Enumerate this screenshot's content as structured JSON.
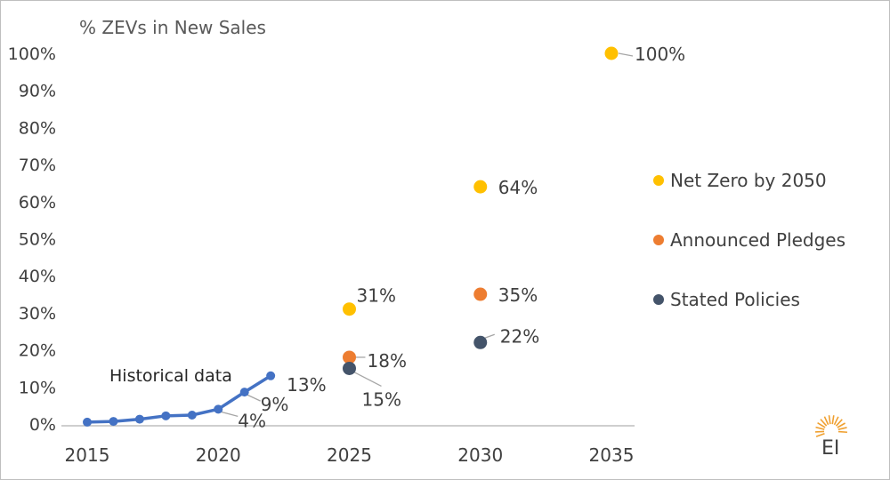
{
  "chart_data": {
    "type": "scatter",
    "title": "% ZEVs in New Sales",
    "xlabel": "",
    "ylabel": "",
    "xlim": [
      2015,
      2035
    ],
    "ylim": [
      0,
      100
    ],
    "x_ticks": [
      "2015",
      "2020",
      "2025",
      "2030",
      "2035"
    ],
    "y_ticks": [
      "0%",
      "10%",
      "20%",
      "30%",
      "40%",
      "50%",
      "60%",
      "70%",
      "80%",
      "90%",
      "100%"
    ],
    "grid": false,
    "legend_position": "right",
    "annotation": "Historical data",
    "historical": {
      "color": "#4472C4",
      "x": [
        2015,
        2016,
        2017,
        2018,
        2019,
        2020,
        2021,
        2022
      ],
      "y": [
        0.5,
        0.7,
        1.3,
        2.2,
        2.4,
        4.0,
        8.6,
        13.0
      ],
      "labels": [
        {
          "x": 2020,
          "y": 4.0,
          "text": "4%"
        },
        {
          "x": 2021,
          "y": 8.6,
          "text": "9%"
        },
        {
          "x": 2022,
          "y": 13.0,
          "text": "13%"
        }
      ]
    },
    "series": [
      {
        "name": "Net Zero by 2050",
        "color": "#FFC000",
        "points": [
          {
            "x": 2025,
            "y": 31,
            "label": "31%"
          },
          {
            "x": 2030,
            "y": 64,
            "label": "64%"
          },
          {
            "x": 2035,
            "y": 100,
            "label": "100%"
          }
        ]
      },
      {
        "name": "Announced Pledges",
        "color": "#ED7D31",
        "points": [
          {
            "x": 2025,
            "y": 18,
            "label": "18%"
          },
          {
            "x": 2030,
            "y": 35,
            "label": "35%"
          }
        ]
      },
      {
        "name": "Stated Policies",
        "color": "#44546A",
        "points": [
          {
            "x": 2025,
            "y": 15,
            "label": "15%"
          },
          {
            "x": 2030,
            "y": 22,
            "label": "22%"
          }
        ]
      }
    ]
  },
  "logo": {
    "text": "EI",
    "color": "#F0A030"
  }
}
